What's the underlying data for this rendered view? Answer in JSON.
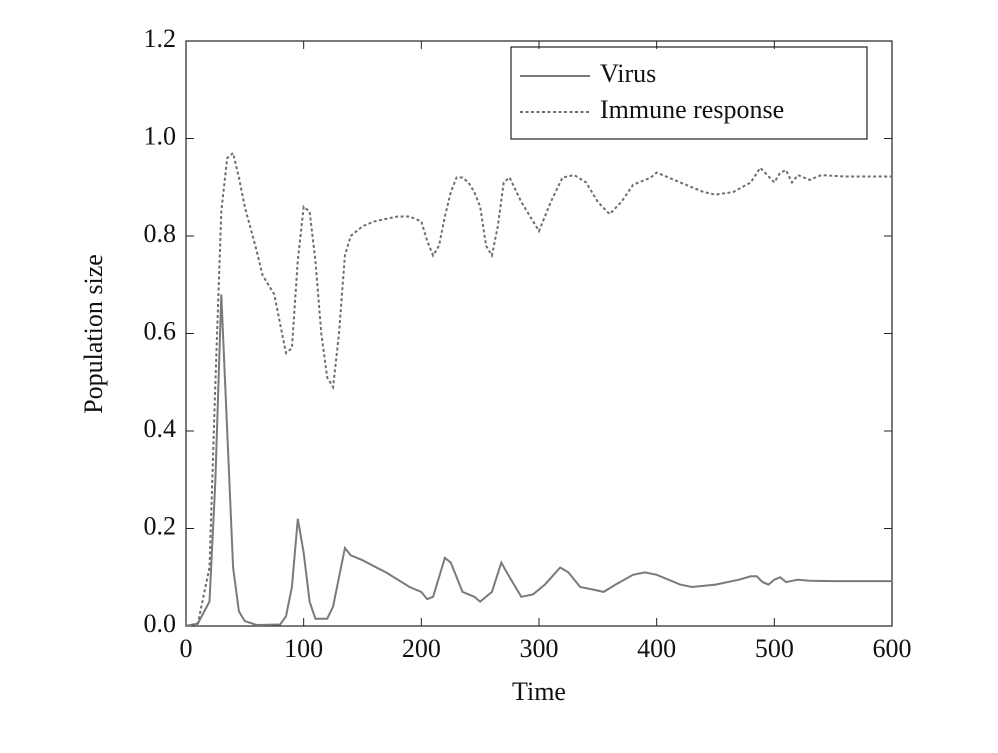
{
  "chart_data": {
    "type": "line",
    "xlabel": "Time",
    "ylabel": "Population size",
    "xlim": [
      0,
      600
    ],
    "xticks": [
      0,
      100,
      200,
      300,
      400,
      500,
      600
    ],
    "ylim": [
      0,
      1.2
    ],
    "yticks": [
      {
        "value": 0,
        "label": "0.0"
      },
      0.2,
      0.4,
      0.6,
      0.8,
      {
        "value": 1,
        "label": "1.0"
      },
      1.2
    ],
    "legend": "upper right",
    "series": [
      {
        "name": "Virus",
        "color": "#7a7a7a",
        "dash": "solid",
        "x": [
          0,
          10,
          20,
          25,
          30,
          35,
          40,
          45,
          50,
          60,
          80,
          85,
          90,
          95,
          100,
          105,
          110,
          120,
          125,
          130,
          135,
          140,
          150,
          170,
          190,
          200,
          205,
          210,
          220,
          225,
          235,
          245,
          250,
          260,
          268,
          275,
          285,
          295,
          305,
          318,
          325,
          335,
          345,
          355,
          365,
          380,
          390,
          400,
          420,
          430,
          450,
          470,
          480,
          485,
          490,
          495,
          500,
          505,
          510,
          520,
          530,
          550,
          600
        ],
        "values": [
          0,
          0.005,
          0.05,
          0.3,
          0.68,
          0.4,
          0.12,
          0.03,
          0.01,
          0.002,
          0.003,
          0.02,
          0.08,
          0.22,
          0.15,
          0.05,
          0.015,
          0.015,
          0.04,
          0.1,
          0.16,
          0.145,
          0.135,
          0.11,
          0.08,
          0.07,
          0.055,
          0.06,
          0.14,
          0.13,
          0.07,
          0.06,
          0.05,
          0.07,
          0.13,
          0.1,
          0.06,
          0.065,
          0.085,
          0.12,
          0.11,
          0.08,
          0.075,
          0.07,
          0.085,
          0.105,
          0.11,
          0.105,
          0.085,
          0.08,
          0.085,
          0.095,
          0.102,
          0.102,
          0.09,
          0.085,
          0.095,
          0.1,
          0.09,
          0.095,
          0.093,
          0.092,
          0.092
        ]
      },
      {
        "name": "Immune response",
        "color": "#6e6e6e",
        "dash": "dotted",
        "x": [
          0,
          10,
          20,
          25,
          30,
          35,
          40,
          45,
          50,
          60,
          65,
          70,
          75,
          80,
          85,
          90,
          95,
          100,
          105,
          110,
          115,
          120,
          125,
          130,
          135,
          140,
          150,
          160,
          170,
          180,
          190,
          200,
          205,
          210,
          215,
          220,
          225,
          230,
          235,
          240,
          245,
          250,
          255,
          260,
          265,
          270,
          275,
          285,
          295,
          300,
          310,
          320,
          330,
          340,
          350,
          360,
          370,
          380,
          395,
          400,
          420,
          440,
          450,
          465,
          480,
          488,
          492,
          500,
          505,
          510,
          515,
          520,
          530,
          540,
          560,
          600
        ],
        "values": [
          0,
          0.005,
          0.12,
          0.5,
          0.85,
          0.96,
          0.97,
          0.92,
          0.86,
          0.77,
          0.72,
          0.7,
          0.68,
          0.62,
          0.56,
          0.57,
          0.75,
          0.86,
          0.85,
          0.75,
          0.6,
          0.51,
          0.49,
          0.6,
          0.76,
          0.8,
          0.82,
          0.83,
          0.835,
          0.84,
          0.84,
          0.83,
          0.79,
          0.76,
          0.78,
          0.84,
          0.89,
          0.92,
          0.92,
          0.91,
          0.89,
          0.86,
          0.78,
          0.76,
          0.82,
          0.91,
          0.92,
          0.87,
          0.83,
          0.81,
          0.87,
          0.92,
          0.925,
          0.91,
          0.87,
          0.845,
          0.87,
          0.905,
          0.92,
          0.93,
          0.91,
          0.89,
          0.885,
          0.89,
          0.91,
          0.94,
          0.93,
          0.91,
          0.93,
          0.935,
          0.91,
          0.925,
          0.915,
          0.925,
          0.922,
          0.922
        ]
      }
    ]
  }
}
